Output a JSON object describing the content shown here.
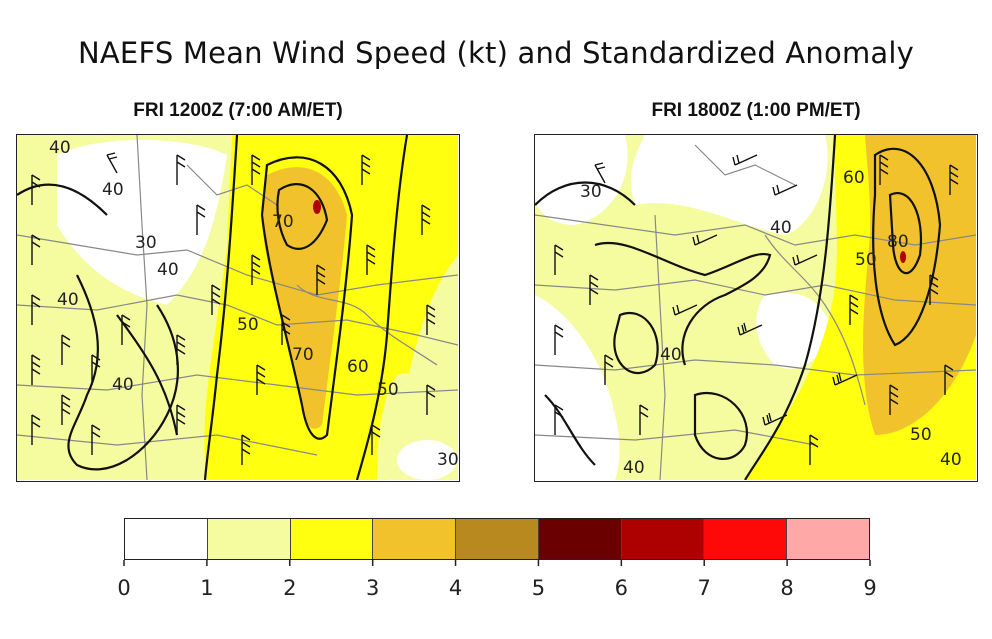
{
  "title": "NAEFS Mean Wind Speed (kt) and Standardized Anomaly",
  "panels": [
    {
      "title": "FRI 1200Z (7:00 AM/ET)",
      "contour_labels": [
        "40",
        "40",
        "30",
        "40",
        "40",
        "70",
        "60",
        "70",
        "50",
        "50",
        "40",
        "30"
      ]
    },
    {
      "title": "FRI 1800Z (1:00 PM/ET)",
      "contour_labels": [
        "30",
        "40",
        "60",
        "80",
        "50",
        "40",
        "40",
        "40",
        "50"
      ]
    }
  ],
  "chart_data": {
    "type": "heatmap",
    "title": "NAEFS Mean Wind Speed (kt) and Standardized Anomaly",
    "colorbar": {
      "ticks": [
        0,
        1,
        2,
        3,
        4,
        5,
        6,
        7,
        8,
        9
      ],
      "bins": [
        {
          "from": 0,
          "to": 1,
          "color": "#ffffff"
        },
        {
          "from": 1,
          "to": 2,
          "color": "#f5fca0"
        },
        {
          "from": 2,
          "to": 3,
          "color": "#ffff10"
        },
        {
          "from": 3,
          "to": 4,
          "color": "#f2c22c"
        },
        {
          "from": 4,
          "to": 5,
          "color": "#b8891f"
        },
        {
          "from": 5,
          "to": 6,
          "color": "#6a0000"
        },
        {
          "from": 6,
          "to": 7,
          "color": "#ad0000"
        },
        {
          "from": 7,
          "to": 8,
          "color": "#ff0808"
        },
        {
          "from": 8,
          "to": 9,
          "color": "#ffa8a8"
        }
      ]
    }
  }
}
